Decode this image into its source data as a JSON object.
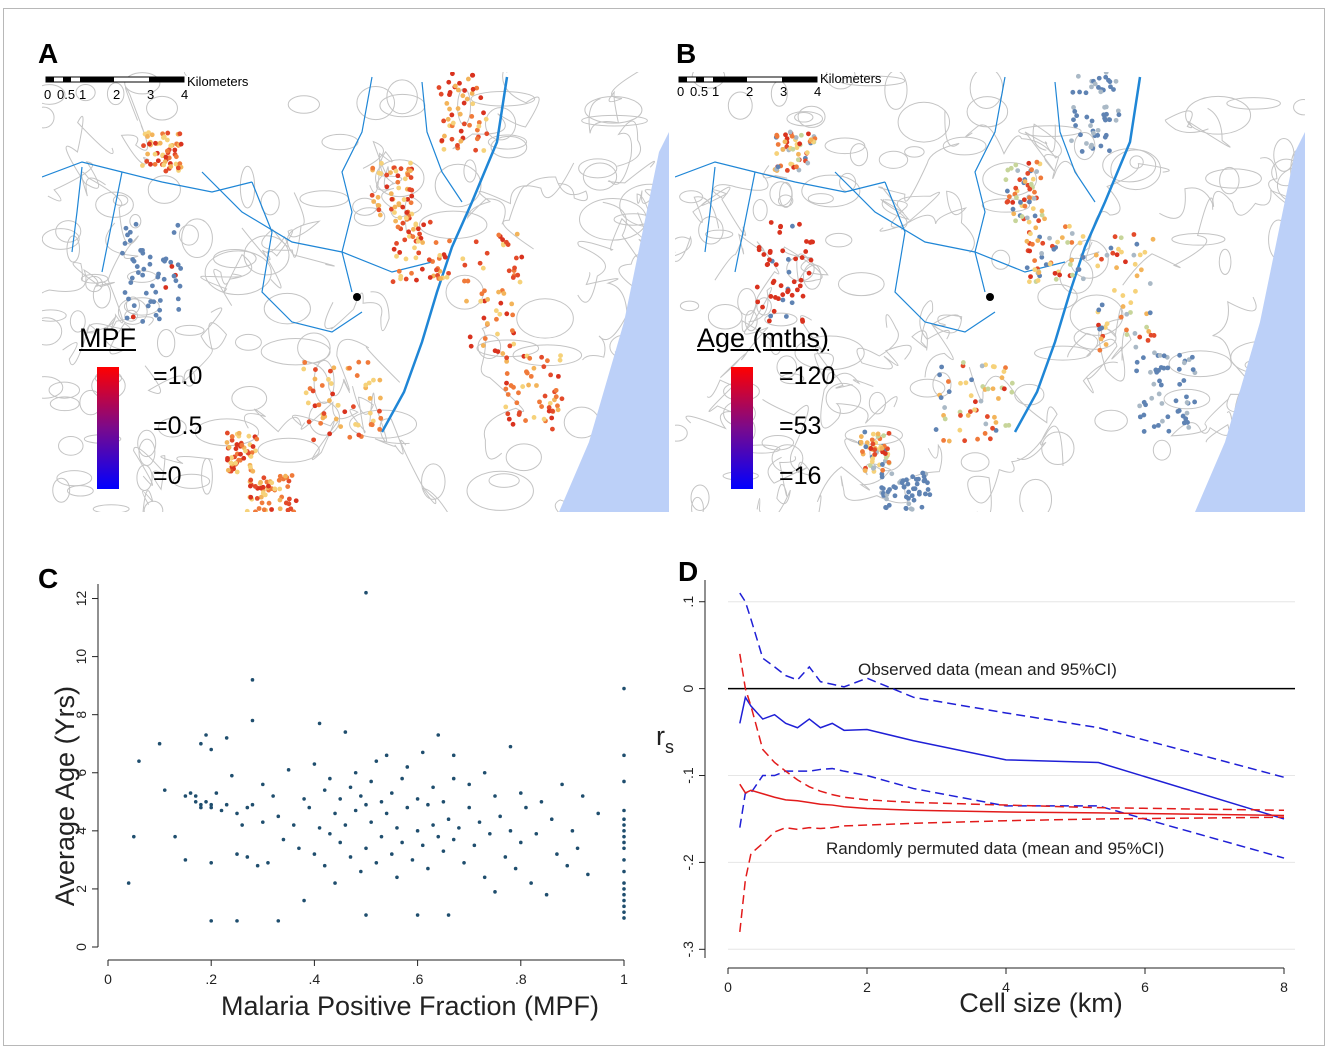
{
  "panels": {
    "a_label": "A",
    "b_label": "B",
    "c_label": "C",
    "d_label": "D"
  },
  "map_a": {
    "legend_title": "MPF",
    "legend_values": [
      "=1.0",
      "=0.5",
      "=0"
    ],
    "scale_title": "Kilometers",
    "scale_ticks": [
      "0",
      "0.5",
      "1",
      "2",
      "3",
      "4"
    ],
    "colors": {
      "high": "#ff0000",
      "mid": "#7a0a8c",
      "low": "#0000ff",
      "sea": "#bcd0f8",
      "river": "#1f86d6",
      "contour": "#c4c4c4"
    }
  },
  "map_b": {
    "legend_title": "Age (mths)",
    "legend_values": [
      "=120",
      "=53",
      "=16"
    ],
    "scale_title": "Kilometers",
    "scale_ticks": [
      "0",
      "0.5",
      "1",
      "2",
      "3",
      "4"
    ],
    "colors": {
      "high": "#ff0000",
      "mid": "#7a0a8c",
      "low": "#0000ff",
      "sea": "#bcd0f8",
      "river": "#1f86d6",
      "contour": "#c4c4c4"
    }
  },
  "chart_data": [
    {
      "type": "scatter",
      "title": "",
      "xlabel": "Malaria Positive Fraction (MPF)",
      "ylabel": "Average Age (Yrs)",
      "xlim": [
        0,
        1
      ],
      "ylim": [
        0,
        12.5
      ],
      "xticks": [
        0,
        0.2,
        0.4,
        0.6,
        0.8,
        1
      ],
      "xtick_labels": [
        "0",
        ".2",
        ".4",
        ".6",
        ".8",
        "1"
      ],
      "yticks": [
        0,
        2,
        4,
        6,
        8,
        10,
        12
      ],
      "ytick_labels": [
        "0",
        "2",
        "4",
        "6",
        "8",
        "10",
        "12"
      ],
      "point_color": "#1f4e6e",
      "points": [
        [
          0.04,
          2.2
        ],
        [
          0.05,
          3.8
        ],
        [
          0.06,
          6.4
        ],
        [
          0.1,
          7.0
        ],
        [
          0.11,
          5.4
        ],
        [
          0.13,
          3.8
        ],
        [
          0.15,
          3.0
        ],
        [
          0.15,
          5.2
        ],
        [
          0.16,
          5.3
        ],
        [
          0.17,
          5.0
        ],
        [
          0.17,
          5.2
        ],
        [
          0.18,
          4.9
        ],
        [
          0.18,
          7.0
        ],
        [
          0.18,
          4.8
        ],
        [
          0.19,
          5.0
        ],
        [
          0.19,
          7.3
        ],
        [
          0.2,
          4.9
        ],
        [
          0.2,
          6.8
        ],
        [
          0.2,
          4.8
        ],
        [
          0.2,
          2.9
        ],
        [
          0.2,
          0.9
        ],
        [
          0.21,
          5.3
        ],
        [
          0.22,
          4.7
        ],
        [
          0.23,
          7.2
        ],
        [
          0.23,
          4.9
        ],
        [
          0.24,
          5.9
        ],
        [
          0.25,
          4.6
        ],
        [
          0.25,
          3.2
        ],
        [
          0.25,
          0.9
        ],
        [
          0.26,
          4.2
        ],
        [
          0.27,
          4.8
        ],
        [
          0.27,
          3.1
        ],
        [
          0.28,
          9.2
        ],
        [
          0.28,
          7.8
        ],
        [
          0.28,
          4.9
        ],
        [
          0.29,
          2.8
        ],
        [
          0.3,
          5.6
        ],
        [
          0.3,
          4.3
        ],
        [
          0.31,
          2.9
        ],
        [
          0.32,
          5.2
        ],
        [
          0.33,
          0.9
        ],
        [
          0.33,
          4.5
        ],
        [
          0.34,
          3.7
        ],
        [
          0.35,
          6.1
        ],
        [
          0.36,
          4.2
        ],
        [
          0.37,
          3.4
        ],
        [
          0.38,
          1.6
        ],
        [
          0.38,
          5.1
        ],
        [
          0.39,
          4.8
        ],
        [
          0.4,
          3.2
        ],
        [
          0.4,
          6.3
        ],
        [
          0.41,
          4.1
        ],
        [
          0.41,
          7.7
        ],
        [
          0.42,
          5.4
        ],
        [
          0.42,
          2.8
        ],
        [
          0.43,
          3.9
        ],
        [
          0.43,
          5.8
        ],
        [
          0.44,
          4.6
        ],
        [
          0.44,
          2.2
        ],
        [
          0.45,
          5.1
        ],
        [
          0.45,
          3.6
        ],
        [
          0.46,
          7.4
        ],
        [
          0.46,
          4.2
        ],
        [
          0.47,
          5.5
        ],
        [
          0.47,
          3.1
        ],
        [
          0.48,
          6.0
        ],
        [
          0.48,
          4.7
        ],
        [
          0.49,
          2.6
        ],
        [
          0.49,
          5.2
        ],
        [
          0.5,
          12.2
        ],
        [
          0.5,
          1.1
        ],
        [
          0.5,
          4.9
        ],
        [
          0.5,
          3.4
        ],
        [
          0.51,
          5.7
        ],
        [
          0.51,
          4.3
        ],
        [
          0.52,
          6.4
        ],
        [
          0.52,
          2.9
        ],
        [
          0.53,
          5.0
        ],
        [
          0.53,
          3.8
        ],
        [
          0.54,
          4.6
        ],
        [
          0.54,
          6.6
        ],
        [
          0.55,
          3.2
        ],
        [
          0.55,
          5.3
        ],
        [
          0.56,
          4.1
        ],
        [
          0.56,
          2.4
        ],
        [
          0.57,
          5.8
        ],
        [
          0.57,
          3.6
        ],
        [
          0.58,
          4.8
        ],
        [
          0.58,
          6.2
        ],
        [
          0.59,
          3.0
        ],
        [
          0.6,
          5.1
        ],
        [
          0.6,
          4.0
        ],
        [
          0.6,
          1.1
        ],
        [
          0.61,
          6.7
        ],
        [
          0.61,
          3.5
        ],
        [
          0.62,
          4.9
        ],
        [
          0.62,
          2.7
        ],
        [
          0.63,
          5.5
        ],
        [
          0.63,
          4.2
        ],
        [
          0.64,
          3.8
        ],
        [
          0.64,
          7.3
        ],
        [
          0.65,
          5.0
        ],
        [
          0.65,
          3.3
        ],
        [
          0.66,
          4.4
        ],
        [
          0.66,
          1.1
        ],
        [
          0.67,
          5.8
        ],
        [
          0.67,
          3.7
        ],
        [
          0.67,
          6.6
        ],
        [
          0.68,
          4.1
        ],
        [
          0.69,
          2.9
        ],
        [
          0.7,
          4.8
        ],
        [
          0.7,
          5.6
        ],
        [
          0.71,
          3.5
        ],
        [
          0.72,
          4.3
        ],
        [
          0.73,
          6.0
        ],
        [
          0.73,
          2.4
        ],
        [
          0.74,
          3.9
        ],
        [
          0.75,
          5.2
        ],
        [
          0.75,
          1.9
        ],
        [
          0.76,
          4.5
        ],
        [
          0.77,
          3.1
        ],
        [
          0.78,
          6.9
        ],
        [
          0.78,
          4.0
        ],
        [
          0.79,
          2.7
        ],
        [
          0.8,
          5.3
        ],
        [
          0.8,
          3.6
        ],
        [
          0.81,
          4.8
        ],
        [
          0.82,
          2.2
        ],
        [
          0.83,
          3.9
        ],
        [
          0.84,
          5.0
        ],
        [
          0.85,
          1.8
        ],
        [
          0.86,
          4.4
        ],
        [
          0.87,
          3.2
        ],
        [
          0.88,
          5.6
        ],
        [
          0.89,
          2.8
        ],
        [
          0.9,
          4.0
        ],
        [
          0.91,
          3.4
        ],
        [
          0.92,
          5.2
        ],
        [
          0.93,
          2.5
        ],
        [
          0.95,
          4.6
        ],
        [
          1.0,
          8.9
        ],
        [
          1.0,
          6.6
        ],
        [
          1.0,
          5.7
        ],
        [
          1.0,
          4.7
        ],
        [
          1.0,
          4.4
        ],
        [
          1.0,
          4.2
        ],
        [
          1.0,
          4.0
        ],
        [
          1.0,
          3.8
        ],
        [
          1.0,
          3.6
        ],
        [
          1.0,
          3.4
        ],
        [
          1.0,
          3.0
        ],
        [
          1.0,
          2.6
        ],
        [
          1.0,
          2.2
        ],
        [
          1.0,
          2.0
        ],
        [
          1.0,
          1.8
        ],
        [
          1.0,
          1.6
        ],
        [
          1.0,
          1.4
        ],
        [
          1.0,
          1.2
        ],
        [
          1.0,
          1.0
        ]
      ]
    },
    {
      "type": "line",
      "title": "",
      "xlabel": "Cell size (km)",
      "ylabel": "r",
      "ylabel_subscript": "s",
      "xlim": [
        0,
        8
      ],
      "ylim": [
        -0.31,
        0.125
      ],
      "xticks": [
        0,
        2,
        4,
        6,
        8
      ],
      "xtick_labels": [
        "0",
        "2",
        "4",
        "6",
        "8"
      ],
      "yticks": [
        -0.3,
        -0.2,
        -0.1,
        0,
        0.1
      ],
      "ytick_labels": [
        "-.3",
        "-.2",
        "-.1",
        "0",
        ".1"
      ],
      "annotations": [
        "Observed data (mean and 95%CI)",
        "Randomly permuted data (mean and 95%CI)"
      ],
      "x": [
        0.17,
        0.25,
        0.33,
        0.5,
        0.67,
        0.83,
        1.0,
        1.17,
        1.33,
        1.5,
        1.67,
        2.0,
        2.67,
        4.0,
        5.33,
        8.0
      ],
      "series": [
        {
          "values": [
            -0.04,
            -0.01,
            -0.02,
            -0.035,
            -0.03,
            -0.04,
            -0.045,
            -0.035,
            -0.045,
            -0.04,
            -0.048,
            -0.047,
            -0.06,
            -0.082,
            -0.085,
            -0.15
          ],
          "color": "#1f1fd6",
          "dash": "solid"
        },
        {
          "values": [
            0.11,
            0.1,
            0.08,
            0.035,
            0.025,
            0.015,
            0.01,
            0.025,
            0.008,
            0.005,
            0.002,
            0.012,
            -0.01,
            -0.028,
            -0.045,
            -0.102
          ],
          "color": "#1f1fd6",
          "dash": "dashed"
        },
        {
          "values": [
            -0.16,
            -0.12,
            -0.12,
            -0.1,
            -0.1,
            -0.095,
            -0.095,
            -0.095,
            -0.093,
            -0.092,
            -0.095,
            -0.1,
            -0.115,
            -0.135,
            -0.135,
            -0.195
          ],
          "color": "#1f1fd6",
          "dash": "dashed"
        },
        {
          "values": [
            -0.11,
            -0.12,
            -0.117,
            -0.121,
            -0.125,
            -0.128,
            -0.129,
            -0.131,
            -0.133,
            -0.134,
            -0.136,
            -0.138,
            -0.14,
            -0.142,
            -0.143,
            -0.146
          ],
          "color": "#e21b1b",
          "dash": "solid"
        },
        {
          "values": [
            0.04,
            0.0,
            -0.02,
            -0.07,
            -0.085,
            -0.095,
            -0.105,
            -0.113,
            -0.118,
            -0.122,
            -0.125,
            -0.128,
            -0.131,
            -0.134,
            -0.137,
            -0.14
          ],
          "color": "#e21b1b",
          "dash": "dashed"
        },
        {
          "values": [
            -0.28,
            -0.22,
            -0.19,
            -0.178,
            -0.165,
            -0.16,
            -0.162,
            -0.16,
            -0.161,
            -0.16,
            -0.158,
            -0.157,
            -0.155,
            -0.152,
            -0.15,
            -0.148
          ],
          "color": "#e21b1b",
          "dash": "dashed"
        }
      ]
    }
  ]
}
